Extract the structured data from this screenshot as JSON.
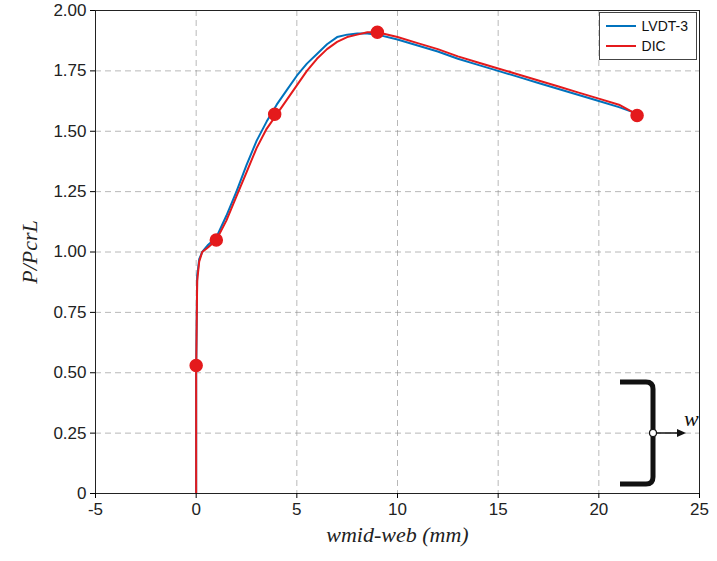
{
  "chart_data": {
    "type": "line",
    "xlabel": "wmid-web (mm)",
    "ylabel": "P/PcrL",
    "x": [
      0,
      0,
      0.05,
      0.15,
      0.3,
      0.6,
      1,
      1.5,
      2,
      2.5,
      3,
      3.5,
      4,
      4.5,
      5,
      5.5,
      6,
      6.5,
      7,
      7.5,
      8,
      8.5,
      9,
      10,
      11,
      12,
      13,
      14,
      15,
      16,
      17,
      18,
      19,
      20,
      21,
      22
    ],
    "series": [
      {
        "name": "LVDT-3",
        "color": "#0072bd",
        "line_style": "solid",
        "values": [
          0,
          0.5,
          0.9,
          0.97,
          1.0,
          1.03,
          1.06,
          1.15,
          1.25,
          1.36,
          1.46,
          1.54,
          1.61,
          1.67,
          1.73,
          1.78,
          1.82,
          1.86,
          1.89,
          1.9,
          1.905,
          1.905,
          1.9,
          1.88,
          1.855,
          1.83,
          1.8,
          1.775,
          1.75,
          1.725,
          1.7,
          1.675,
          1.65,
          1.625,
          1.6,
          1.57
        ]
      },
      {
        "name": "DIC",
        "color": "#e41a1c",
        "line_style": "solid",
        "values": [
          0,
          0.5,
          0.88,
          0.96,
          1.0,
          1.02,
          1.05,
          1.13,
          1.23,
          1.33,
          1.43,
          1.51,
          1.57,
          1.63,
          1.69,
          1.75,
          1.8,
          1.84,
          1.87,
          1.89,
          1.9,
          1.91,
          1.91,
          1.89,
          1.865,
          1.84,
          1.81,
          1.785,
          1.76,
          1.735,
          1.71,
          1.685,
          1.66,
          1.635,
          1.61,
          1.565
        ]
      }
    ],
    "highlight_points": {
      "x": [
        0,
        1,
        3.9,
        9,
        21.9
      ],
      "y": [
        0.53,
        1.05,
        1.57,
        1.91,
        1.565
      ],
      "color": "#e41a1c",
      "marker": "circle"
    },
    "xlim": [
      -5,
      25
    ],
    "xticks": [
      -5,
      0,
      5,
      10,
      15,
      20,
      25
    ],
    "ylim": [
      0,
      2
    ],
    "yticks": [
      0,
      0.25,
      {
        "value": 0.5,
        "label": "0.50"
      },
      0.75,
      {
        "value": 1,
        "label": "1.00"
      },
      1.25,
      {
        "value": 1.5,
        "label": "1.50"
      },
      1.75,
      {
        "value": 2,
        "label": "2.00"
      }
    ],
    "grid": true,
    "legend": "top-right",
    "annotations": [
      "w"
    ]
  }
}
